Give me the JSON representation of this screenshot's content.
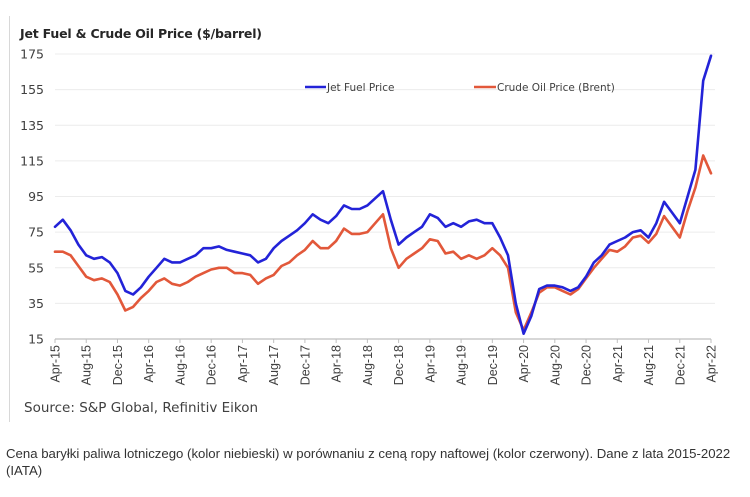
{
  "chart_data": {
    "type": "line",
    "title": "Jet Fuel & Crude Oil Price ($/barrel)",
    "xlabel": "",
    "ylabel": "",
    "ylim": [
      15,
      175
    ],
    "yticks": [
      "175",
      "155",
      "135",
      "115",
      "95",
      "75",
      "55",
      "35",
      "15"
    ],
    "ytick_values": [
      175,
      155,
      135,
      115,
      95,
      75,
      55,
      35,
      15
    ],
    "xtick_labels": [
      "Apr-15",
      "Aug-15",
      "Dec-15",
      "Apr-16",
      "Aug-16",
      "Dec-16",
      "Apr-17",
      "Aug-17",
      "Dec-17",
      "Apr-18",
      "Aug-18",
      "Dec-18",
      "Apr-19",
      "Aug-19",
      "Dec-19",
      "Apr-20",
      "Aug-20",
      "Dec-20",
      "Apr-21",
      "Aug-21",
      "Dec-21",
      "Apr-22"
    ],
    "grid": true,
    "legend_position": "top",
    "x": [
      "Apr-15",
      "May-15",
      "Jun-15",
      "Jul-15",
      "Aug-15",
      "Sep-15",
      "Oct-15",
      "Nov-15",
      "Dec-15",
      "Jan-16",
      "Feb-16",
      "Mar-16",
      "Apr-16",
      "May-16",
      "Jun-16",
      "Jul-16",
      "Aug-16",
      "Sep-16",
      "Oct-16",
      "Nov-16",
      "Dec-16",
      "Jan-17",
      "Feb-17",
      "Mar-17",
      "Apr-17",
      "May-17",
      "Jun-17",
      "Jul-17",
      "Aug-17",
      "Sep-17",
      "Oct-17",
      "Nov-17",
      "Dec-17",
      "Jan-18",
      "Feb-18",
      "Mar-18",
      "Apr-18",
      "May-18",
      "Jun-18",
      "Jul-18",
      "Aug-18",
      "Sep-18",
      "Oct-18",
      "Nov-18",
      "Dec-18",
      "Jan-19",
      "Feb-19",
      "Mar-19",
      "Apr-19",
      "May-19",
      "Jun-19",
      "Jul-19",
      "Aug-19",
      "Sep-19",
      "Oct-19",
      "Nov-19",
      "Dec-19",
      "Jan-20",
      "Feb-20",
      "Mar-20",
      "Apr-20",
      "May-20",
      "Jun-20",
      "Jul-20",
      "Aug-20",
      "Sep-20",
      "Oct-20",
      "Nov-20",
      "Dec-20",
      "Jan-21",
      "Feb-21",
      "Mar-21",
      "Apr-21",
      "May-21",
      "Jun-21",
      "Jul-21",
      "Aug-21",
      "Sep-21",
      "Oct-21",
      "Nov-21",
      "Dec-21",
      "Jan-22",
      "Feb-22",
      "Mar-22",
      "Apr-22"
    ],
    "series": [
      {
        "name": "Jet Fuel Price",
        "color": "#2323d8",
        "values": [
          78,
          82,
          76,
          68,
          62,
          60,
          61,
          58,
          52,
          42,
          40,
          44,
          50,
          55,
          60,
          58,
          58,
          60,
          62,
          66,
          66,
          67,
          65,
          64,
          63,
          62,
          58,
          60,
          66,
          70,
          73,
          76,
          80,
          85,
          82,
          80,
          84,
          90,
          88,
          88,
          90,
          94,
          98,
          82,
          68,
          72,
          75,
          78,
          85,
          83,
          78,
          80,
          78,
          81,
          82,
          80,
          80,
          72,
          62,
          35,
          18,
          28,
          43,
          45,
          45,
          44,
          42,
          44,
          50,
          58,
          62,
          68,
          70,
          72,
          75,
          76,
          72,
          80,
          92,
          86,
          80,
          95,
          110,
          160,
          174
        ]
      },
      {
        "name": "Crude Oil Price (Brent)",
        "color": "#e2583a",
        "values": [
          64,
          64,
          62,
          56,
          50,
          48,
          49,
          47,
          40,
          31,
          33,
          38,
          42,
          47,
          49,
          46,
          45,
          47,
          50,
          52,
          54,
          55,
          55,
          52,
          52,
          51,
          46,
          49,
          51,
          56,
          58,
          62,
          65,
          70,
          66,
          66,
          70,
          77,
          74,
          74,
          75,
          80,
          85,
          66,
          55,
          60,
          63,
          66,
          71,
          70,
          63,
          64,
          60,
          62,
          60,
          62,
          66,
          62,
          55,
          30,
          20,
          30,
          41,
          44,
          44,
          42,
          40,
          43,
          49,
          55,
          60,
          65,
          64,
          67,
          72,
          73,
          69,
          74,
          84,
          78,
          72,
          87,
          100,
          118,
          108
        ]
      }
    ]
  },
  "legend": {
    "jet_fuel": "Jet Fuel Price",
    "crude_oil": "Crude Oil Price (Brent)"
  },
  "source": "Source: S&P Global, Refinitiv Eikon",
  "caption": "Cena baryłki paliwa lotniczego (kolor niebieski) w porównaniu z ceną ropy naftowej (kolor czerwony). Dane z lata 2015-2022 (IATA)"
}
